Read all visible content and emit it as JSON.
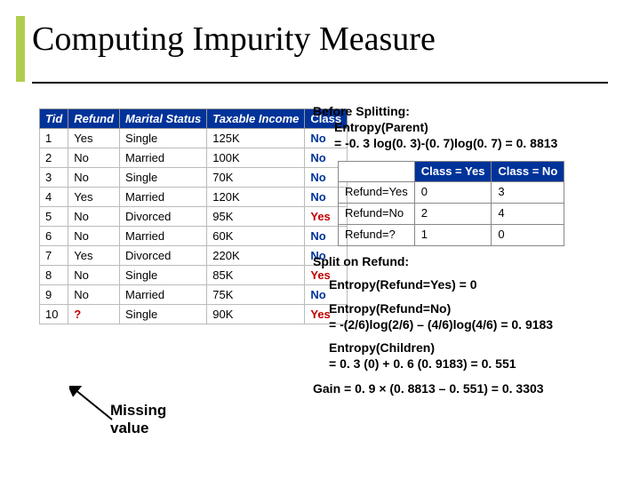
{
  "title": "Computing Impurity Measure",
  "main_table": {
    "headers": [
      "Tid",
      "Refund",
      "Marital Status",
      "Taxable Income",
      "Class"
    ],
    "rows": [
      {
        "tid": "1",
        "refund": "Yes",
        "marital": "Single",
        "income": "125K",
        "class": "No"
      },
      {
        "tid": "2",
        "refund": "No",
        "marital": "Married",
        "income": "100K",
        "class": "No"
      },
      {
        "tid": "3",
        "refund": "No",
        "marital": "Single",
        "income": "70K",
        "class": "No"
      },
      {
        "tid": "4",
        "refund": "Yes",
        "marital": "Married",
        "income": "120K",
        "class": "No"
      },
      {
        "tid": "5",
        "refund": "No",
        "marital": "Divorced",
        "income": "95K",
        "class": "Yes"
      },
      {
        "tid": "6",
        "refund": "No",
        "marital": "Married",
        "income": "60K",
        "class": "No"
      },
      {
        "tid": "7",
        "refund": "Yes",
        "marital": "Divorced",
        "income": "220K",
        "class": "No"
      },
      {
        "tid": "8",
        "refund": "No",
        "marital": "Single",
        "income": "85K",
        "class": "Yes"
      },
      {
        "tid": "9",
        "refund": "No",
        "marital": "Married",
        "income": "75K",
        "class": "No"
      },
      {
        "tid": "10",
        "refund": "?",
        "marital": "Single",
        "income": "90K",
        "class": "Yes"
      }
    ]
  },
  "before": {
    "heading": "Before Splitting:",
    "l1": "Entropy(Parent)",
    "l2": "= -0. 3 log(0. 3)-(0. 7)log(0. 7) = 0. 8813"
  },
  "summary_table": {
    "head_yes": "Class = Yes",
    "head_no": "Class = No",
    "rows": [
      {
        "label": "Refund=Yes",
        "yes": "0",
        "no": "3"
      },
      {
        "label": "Refund=No",
        "yes": "2",
        "no": "4"
      },
      {
        "label": "Refund=?",
        "yes": "1",
        "no": "0"
      }
    ]
  },
  "split": {
    "heading": "Split on Refund:",
    "e_yes": "Entropy(Refund=Yes) = 0",
    "e_no_l1": "Entropy(Refund=No)",
    "e_no_l2": "= -(2/6)log(2/6) – (4/6)log(4/6) = 0. 9183",
    "e_children_l1": "Entropy(Children)",
    "e_children_l2": "= 0. 3 (0) + 0. 6 (0. 9183) = 0. 551",
    "gain": "Gain = 0. 9 × (0. 8813 – 0. 551) = 0. 3303"
  },
  "missing_label_l1": "Missing",
  "missing_label_l2": "value",
  "colors": {
    "accent": "#b0cd4f",
    "header_bg": "#003399",
    "yes_color": "#c00000",
    "no_color": "#003399"
  }
}
